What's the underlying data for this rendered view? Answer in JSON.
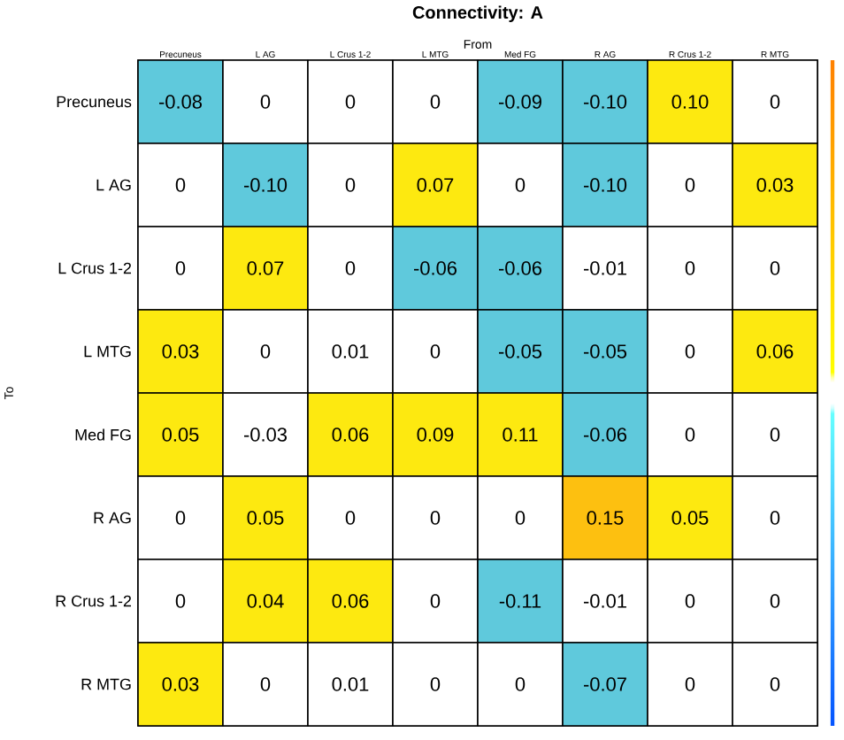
{
  "chart_data": {
    "type": "heatmap",
    "title": "Connectivity: A",
    "xlabel": "From",
    "ylabel": "To",
    "categories": [
      "Precuneus",
      "L AG",
      "L Crus 1-2",
      "L MTG",
      "Med FG",
      "R AG",
      "R Crus 1-2",
      "R MTG"
    ],
    "y_categories": [
      "Precuneus",
      "L AG",
      "L Crus 1-2",
      "L MTG",
      "Med FG",
      "R AG",
      "R Crus 1-2",
      "R MTG"
    ],
    "cells": [
      [
        -0.08,
        0,
        0,
        0,
        -0.09,
        -0.1,
        0.1,
        0
      ],
      [
        0,
        -0.1,
        0,
        0.07,
        0,
        -0.1,
        0,
        0.03
      ],
      [
        0,
        0.07,
        0,
        -0.06,
        -0.06,
        -0.01,
        0,
        0
      ],
      [
        0.03,
        0,
        0.01,
        0,
        -0.05,
        -0.05,
        0,
        0.06
      ],
      [
        0.05,
        -0.03,
        0.06,
        0.09,
        0.11,
        -0.06,
        0,
        0
      ],
      [
        0,
        0.05,
        0,
        0,
        0,
        0.15,
        0.05,
        0
      ],
      [
        0,
        0.04,
        0.06,
        0,
        -0.11,
        -0.01,
        0,
        0
      ],
      [
        0.03,
        0,
        0.01,
        0,
        0,
        -0.07,
        0,
        0
      ]
    ],
    "cell_labels": [
      [
        "-0.08",
        "0",
        "0",
        "0",
        "-0.09",
        "-0.10",
        "0.10",
        "0"
      ],
      [
        "0",
        "-0.10",
        "0",
        "0.07",
        "0",
        "-0.10",
        "0",
        "0.03"
      ],
      [
        "0",
        "0.07",
        "0",
        "-0.06",
        "-0.06",
        "-0.01",
        "0",
        "0"
      ],
      [
        "0.03",
        "0",
        "0.01",
        "0",
        "-0.05",
        "-0.05",
        "0",
        "0.06"
      ],
      [
        "0.05",
        "-0.03",
        "0.06",
        "0.09",
        "0.11",
        "-0.06",
        "0",
        "0"
      ],
      [
        "0",
        "0.05",
        "0",
        "0",
        "0",
        "0.15",
        "0.05",
        "0"
      ],
      [
        "0",
        "0.04",
        "0.06",
        "0",
        "-0.11",
        "-0.01",
        "0",
        "0"
      ],
      [
        "0.03",
        "0",
        "0.01",
        "0",
        "0",
        "-0.07",
        "0",
        "0"
      ]
    ]
  }
}
